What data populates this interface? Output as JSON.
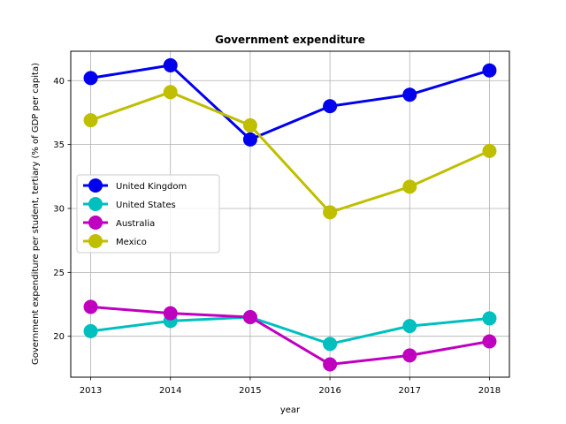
{
  "chart_data": {
    "type": "line",
    "title": "Government expenditure",
    "xlabel": "year",
    "ylabel": "Government expenditure per student, tertiary (% of GDP per capita)",
    "x": [
      2013,
      2014,
      2015,
      2016,
      2017,
      2018
    ],
    "x_ticks": [
      "2013",
      "2014",
      "2015",
      "2016",
      "2017",
      "2018"
    ],
    "y_ticks": [
      "20",
      "25",
      "30",
      "35",
      "40"
    ],
    "xlim": [
      2012.75,
      2018.25
    ],
    "ylim": [
      16.8,
      42.3
    ],
    "grid": true,
    "legend_position": "center-left",
    "series": [
      {
        "name": "United Kingdom",
        "color": "#0000ee",
        "values": [
          40.2,
          41.2,
          35.4,
          38.0,
          38.9,
          40.8
        ]
      },
      {
        "name": "United States",
        "color": "#00bfbf",
        "values": [
          20.4,
          21.2,
          21.5,
          19.4,
          20.8,
          21.4
        ]
      },
      {
        "name": "Australia",
        "color": "#bf00bf",
        "values": [
          22.3,
          21.8,
          21.5,
          17.8,
          18.5,
          19.6
        ]
      },
      {
        "name": "Mexico",
        "color": "#bfbf00",
        "values": [
          36.9,
          39.1,
          36.5,
          29.7,
          31.7,
          34.5
        ]
      }
    ]
  }
}
